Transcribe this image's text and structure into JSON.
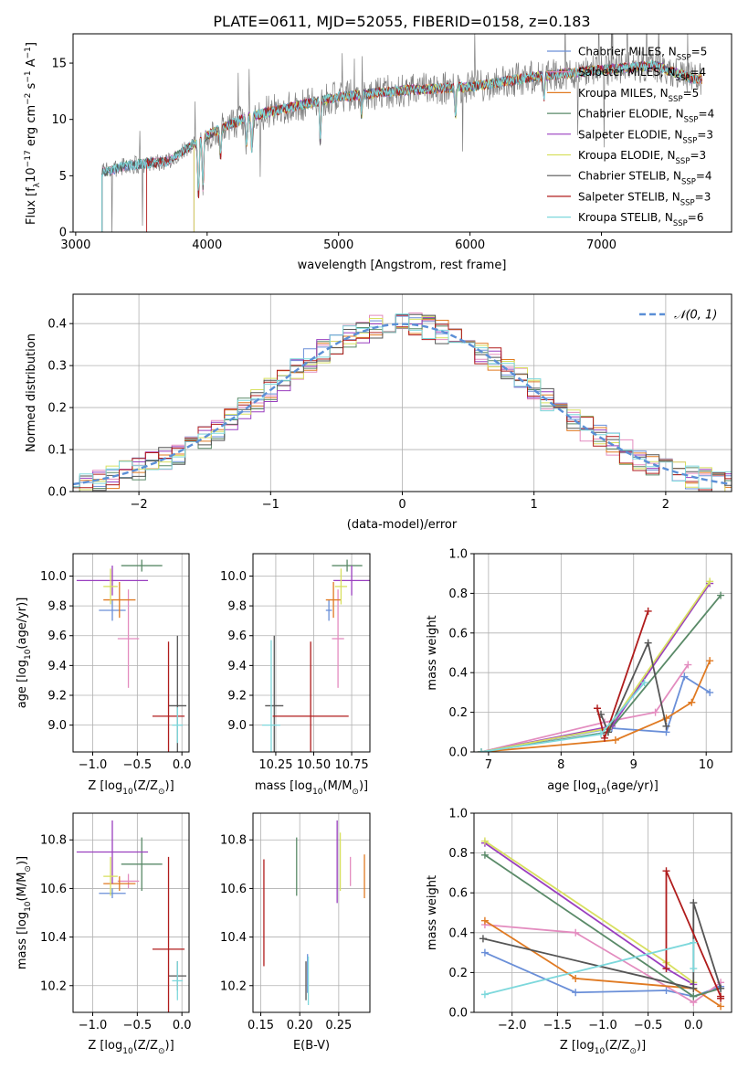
{
  "figure": {
    "title": "PLATE=0611, MJD=52055, FIBERID=0158, z=0.183"
  },
  "models": [
    {
      "name": "Chabrier MILES, N_SSP=5",
      "label_main": "Chabrier MILES, N",
      "label_sub": "SSP",
      "label_end": "=5",
      "color": "#6a8fd8"
    },
    {
      "name": "Salpeter MILES, N_SSP=4",
      "label_main": "Salpeter MILES, N",
      "label_sub": "SSP",
      "label_end": "=4",
      "color": "#e38cbf"
    },
    {
      "name": "Kroupa MILES, N_SSP=5",
      "label_main": "Kroupa MILES, N",
      "label_sub": "SSP",
      "label_end": "=5",
      "color": "#e07a22"
    },
    {
      "name": "Chabrier ELODIE, N_SSP=4",
      "label_main": "Chabrier ELODIE, N",
      "label_sub": "SSP",
      "label_end": "=4",
      "color": "#5a8a68"
    },
    {
      "name": "Salpeter ELODIE, N_SSP=3",
      "label_main": "Salpeter ELODIE, N",
      "label_sub": "SSP",
      "label_end": "=3",
      "color": "#9a3fbf"
    },
    {
      "name": "Kroupa ELODIE, N_SSP=3",
      "label_main": "Kroupa ELODIE, N",
      "label_sub": "SSP",
      "label_end": "=3",
      "color": "#d8e060"
    },
    {
      "name": "Chabrier STELIB, N_SSP=4",
      "label_main": "Chabrier STELIB, N",
      "label_sub": "SSP",
      "label_end": "=4",
      "color": "#555555"
    },
    {
      "name": "Salpeter STELIB, N_SSP=3",
      "label_main": "Salpeter STELIB, N",
      "label_sub": "SSP",
      "label_end": "=3",
      "color": "#b01c1c"
    },
    {
      "name": "Kroupa STELIB, N_SSP=6",
      "label_main": "Kroupa STELIB, N",
      "label_sub": "SSP",
      "label_end": "=6",
      "color": "#7dd8dc"
    }
  ],
  "chart_data": [
    {
      "id": "spectrum",
      "type": "line",
      "xlabel": "wavelength [Angstrom, rest frame]",
      "ylabel_parts": [
        "Flux [f",
        "λ",
        "10",
        "−17",
        " erg cm",
        "−2",
        " s",
        "−1",
        " A",
        "−1",
        "]"
      ],
      "xlim": [
        2980,
        7990
      ],
      "ylim": [
        0,
        17.6
      ],
      "xticks": [
        3000,
        4000,
        5000,
        6000,
        7000
      ],
      "yticks": [
        0,
        5,
        10,
        15
      ],
      "legend_position": "upper-right",
      "data_color": "#808080",
      "continuum": {
        "x": [
          3200,
          3400,
          3700,
          4000,
          4300,
          4600,
          5000,
          5500,
          6000,
          6500,
          7000,
          7400,
          7700
        ],
        "y": [
          5.3,
          5.9,
          6.3,
          8.6,
          10.2,
          11.0,
          12.0,
          12.6,
          12.9,
          13.8,
          14.4,
          14.8,
          13.6
        ]
      }
    },
    {
      "id": "residuals",
      "type": "line",
      "xlabel": "(data-model)/error",
      "ylabel": "Normed distribution",
      "xlim": [
        -2.5,
        2.5
      ],
      "ylim": [
        0,
        0.47
      ],
      "xticks": [
        -2,
        -1,
        0,
        1,
        2
      ],
      "yticks": [
        0.0,
        0.1,
        0.2,
        0.3,
        0.4
      ],
      "legend": "𝒩(0, 1)",
      "legend_position": "upper-right",
      "normal_color": "#5b8fd6"
    },
    {
      "id": "age-vs-Z",
      "type": "scatter",
      "xlabel_parts": [
        "Z [log",
        "10",
        "(Z/Z",
        "⊙",
        ")]"
      ],
      "ylabel_parts": [
        "age  [log",
        "10",
        "(age/yr)]"
      ],
      "xlim": [
        -1.22,
        0.08
      ],
      "ylim": [
        8.82,
        10.15
      ],
      "xticks": [
        -1.0,
        -0.5,
        0.0
      ],
      "yticks": [
        9.0,
        9.2,
        9.4,
        9.6,
        9.8,
        10.0
      ],
      "points": [
        {
          "x": -0.78,
          "xerr": 0.15,
          "y": 9.77,
          "yerr": 0.07
        },
        {
          "x": -0.6,
          "xerr": 0.12,
          "y": 9.58,
          "yerr": 0.33
        },
        {
          "x": -0.7,
          "xerr": 0.18,
          "y": 9.84,
          "yerr": 0.12
        },
        {
          "x": -0.45,
          "xerr": 0.23,
          "y": 10.07,
          "yerr": 0.04
        },
        {
          "x": -0.78,
          "xerr": 0.4,
          "y": 9.97,
          "yerr": 0.1
        },
        {
          "x": -0.8,
          "xerr": 0.08,
          "y": 9.93,
          "yerr": 0.12
        },
        {
          "x": -0.05,
          "xerr": 0.1,
          "y": 9.13,
          "yerr": 0.47
        },
        {
          "x": -0.15,
          "xerr": 0.18,
          "y": 9.06,
          "yerr": 0.5
        },
        {
          "x": -0.05,
          "xerr": 0.06,
          "y": 9.0,
          "yerr": 0.12
        }
      ]
    },
    {
      "id": "age-vs-mass",
      "type": "scatter",
      "xlabel_parts": [
        "mass [log",
        "10",
        "(M/M",
        "⊙",
        ")]"
      ],
      "xlim": [
        10.1,
        10.87
      ],
      "ylim": [
        8.82,
        10.15
      ],
      "xticks": [
        10.25,
        10.5,
        10.75
      ],
      "yticks": [
        9.0,
        9.2,
        9.4,
        9.6,
        9.8,
        10.0
      ],
      "points": [
        {
          "x": 10.6,
          "xerr": 0.02,
          "y": 9.77,
          "yerr": 0.07
        },
        {
          "x": 10.66,
          "xerr": 0.04,
          "y": 9.58,
          "yerr": 0.33
        },
        {
          "x": 10.63,
          "xerr": 0.05,
          "y": 9.84,
          "yerr": 0.12
        },
        {
          "x": 10.72,
          "xerr": 0.1,
          "y": 10.07,
          "yerr": 0.04
        },
        {
          "x": 10.75,
          "xerr": 0.12,
          "y": 9.97,
          "yerr": 0.1
        },
        {
          "x": 10.68,
          "xerr": 0.04,
          "y": 9.93,
          "yerr": 0.12
        },
        {
          "x": 10.24,
          "xerr": 0.06,
          "y": 9.13,
          "yerr": 0.47
        },
        {
          "x": 10.48,
          "xerr": 0.25,
          "y": 9.06,
          "yerr": 0.5
        },
        {
          "x": 10.22,
          "xerr": 0.06,
          "y": 9.0,
          "yerr": 0.57
        }
      ]
    },
    {
      "id": "massweight-vs-age",
      "type": "line",
      "xlabel_parts": [
        "age  [log",
        "10",
        "(age/yr)]"
      ],
      "ylabel": "mass weight",
      "xlim": [
        6.8,
        10.35
      ],
      "ylim": [
        0,
        1
      ],
      "xticks": [
        7,
        8,
        9,
        10
      ],
      "yticks": [
        0.0,
        0.2,
        0.4,
        0.6,
        0.8,
        1.0
      ],
      "series": [
        {
          "x": [
            6.9,
            8.7,
            9.45,
            9.7,
            10.05
          ],
          "y": [
            0.0,
            0.12,
            0.1,
            0.38,
            0.3
          ]
        },
        {
          "x": [
            6.9,
            8.6,
            9.3,
            9.75
          ],
          "y": [
            0.0,
            0.15,
            0.2,
            0.44
          ]
        },
        {
          "x": [
            6.9,
            8.75,
            9.45,
            9.8,
            10.05
          ],
          "y": [
            0.0,
            0.06,
            0.17,
            0.25,
            0.46
          ]
        },
        {
          "x": [
            6.9,
            8.65,
            10.2
          ],
          "y": [
            0.0,
            0.1,
            0.79
          ]
        },
        {
          "x": [
            6.9,
            8.7,
            10.05
          ],
          "y": [
            0.0,
            0.13,
            0.85
          ]
        },
        {
          "x": [
            6.9,
            8.65,
            10.05
          ],
          "y": [
            0.0,
            0.12,
            0.86
          ]
        },
        {
          "x": [
            8.55,
            8.65,
            9.2,
            9.45
          ],
          "y": [
            0.19,
            0.1,
            0.55,
            0.13
          ]
        },
        {
          "x": [
            8.5,
            8.6,
            9.2
          ],
          "y": [
            0.22,
            0.07,
            0.71
          ]
        },
        {
          "x": [
            6.9,
            8.55,
            9.15
          ],
          "y": [
            0.0,
            0.09,
            0.35
          ]
        }
      ]
    },
    {
      "id": "mass-vs-Z",
      "type": "scatter",
      "xlabel_parts": [
        "Z [log",
        "10",
        "(Z/Z",
        "⊙",
        ")]"
      ],
      "ylabel_parts": [
        "mass [log",
        "10",
        "(M/M",
        "⊙",
        ")]"
      ],
      "xlim": [
        -1.22,
        0.08
      ],
      "ylim": [
        10.09,
        10.91
      ],
      "xticks": [
        -1.0,
        -0.5,
        0.0
      ],
      "yticks": [
        10.2,
        10.4,
        10.6,
        10.8
      ],
      "points": [
        {
          "x": -0.78,
          "xerr": 0.15,
          "y": 10.58,
          "yerr": 0.02
        },
        {
          "x": -0.6,
          "xerr": 0.12,
          "y": 10.63,
          "yerr": 0.03
        },
        {
          "x": -0.7,
          "xerr": 0.18,
          "y": 10.62,
          "yerr": 0.03
        },
        {
          "x": -0.45,
          "xerr": 0.23,
          "y": 10.7,
          "yerr": 0.11
        },
        {
          "x": -0.78,
          "xerr": 0.4,
          "y": 10.75,
          "yerr": 0.13
        },
        {
          "x": -0.8,
          "xerr": 0.08,
          "y": 10.65,
          "yerr": 0.08
        },
        {
          "x": -0.05,
          "xerr": 0.1,
          "y": 10.24,
          "yerr": 0.06
        },
        {
          "x": -0.15,
          "xerr": 0.18,
          "y": 10.35,
          "yerr": 0.38
        },
        {
          "x": -0.05,
          "xerr": 0.06,
          "y": 10.22,
          "yerr": 0.08
        }
      ]
    },
    {
      "id": "mass-vs-EBV",
      "type": "scatter",
      "xlabel": "E(B-V)",
      "xlim": [
        0.14,
        0.29
      ],
      "ylim": [
        10.09,
        10.91
      ],
      "xticks": [
        0.15,
        0.2,
        0.25
      ],
      "yticks": [
        10.2,
        10.4,
        10.6,
        10.8
      ],
      "points": [
        {
          "x": 0.21,
          "y": 10.25,
          "yerr": 0.08
        },
        {
          "x": 0.265,
          "y": 10.67,
          "yerr": 0.06
        },
        {
          "x": 0.283,
          "y": 10.65,
          "yerr": 0.09
        },
        {
          "x": 0.196,
          "y": 10.69,
          "yerr": 0.12
        },
        {
          "x": 0.248,
          "y": 10.71,
          "yerr": 0.17
        },
        {
          "x": 0.252,
          "y": 10.71,
          "yerr": 0.12
        },
        {
          "x": 0.208,
          "y": 10.22,
          "yerr": 0.08
        },
        {
          "x": 0.154,
          "y": 10.5,
          "yerr": 0.22
        },
        {
          "x": 0.211,
          "y": 10.22,
          "yerr": 0.1
        }
      ]
    },
    {
      "id": "massweight-vs-Z",
      "type": "line",
      "xlabel_parts": [
        "Z [log",
        "10",
        "(Z/Z",
        "⊙",
        ")]"
      ],
      "ylabel": "mass weight",
      "xlim": [
        -2.42,
        0.42
      ],
      "ylim": [
        0,
        1
      ],
      "xticks": [
        -2.0,
        -1.5,
        -1.0,
        -0.5,
        0.0
      ],
      "yticks": [
        0.0,
        0.2,
        0.4,
        0.6,
        0.8,
        1.0
      ],
      "series": [
        {
          "x": [
            -2.3,
            -1.3,
            -0.3,
            0.0,
            0.3
          ],
          "y": [
            0.3,
            0.1,
            0.11,
            0.08,
            0.13
          ]
        },
        {
          "x": [
            -2.3,
            -1.3,
            0.0,
            0.3
          ],
          "y": [
            0.44,
            0.4,
            0.05,
            0.15
          ]
        },
        {
          "x": [
            -2.3,
            -1.3,
            0.0,
            0.3
          ],
          "y": [
            0.46,
            0.17,
            0.12,
            0.03
          ]
        },
        {
          "x": [
            -2.3,
            0.0,
            0.3
          ],
          "y": [
            0.79,
            0.08,
            0.12
          ]
        },
        {
          "x": [
            -2.3,
            -0.3,
            0.0
          ],
          "y": [
            0.85,
            0.22,
            0.14
          ]
        },
        {
          "x": [
            -2.3,
            -0.3,
            0.0
          ],
          "y": [
            0.86,
            0.25,
            0.15
          ]
        },
        {
          "x": [
            -2.32,
            0.0,
            0.0,
            0.3
          ],
          "y": [
            0.37,
            0.12,
            0.55,
            0.12
          ]
        },
        {
          "x": [
            -0.3,
            -0.3,
            0.3,
            0.3
          ],
          "y": [
            0.22,
            0.71,
            0.08,
            0.07
          ]
        },
        {
          "x": [
            -2.3,
            0.0,
            0.0
          ],
          "y": [
            0.09,
            0.35,
            0.22
          ]
        }
      ]
    }
  ]
}
